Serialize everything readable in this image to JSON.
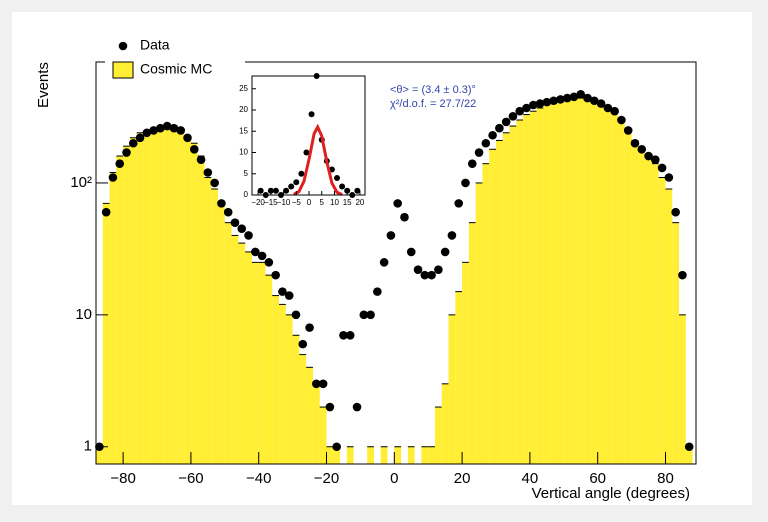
{
  "chart_data": [
    {
      "type": "histogram",
      "xlabel": "Vertical angle (degrees)",
      "ylabel": "Events",
      "yscale": "log",
      "xlim": [
        -88,
        89
      ],
      "ylim": [
        0.74,
        826
      ],
      "xticks": [
        {
          "value": -80,
          "label": "−80"
        },
        {
          "value": -60,
          "label": "−60"
        },
        {
          "value": -40,
          "label": "−40"
        },
        {
          "value": -20,
          "label": "−20"
        },
        0,
        20,
        40,
        60,
        80
      ],
      "yticks": [
        1,
        10,
        {
          "value": 100,
          "label": "10²"
        }
      ],
      "x": [
        -87,
        -85,
        -83,
        -81,
        -79,
        -77,
        -75,
        -73,
        -71,
        -69,
        -67,
        -65,
        -63,
        -61,
        -59,
        -57,
        -55,
        -53,
        -51,
        -49,
        -47,
        -45,
        -43,
        -41,
        -39,
        -37,
        -35,
        -33,
        -31,
        -29,
        -27,
        -25,
        -23,
        -21,
        -19,
        -17,
        -15,
        -13,
        -11,
        -9,
        -7,
        -5,
        -3,
        -1,
        1,
        3,
        5,
        7,
        9,
        11,
        13,
        15,
        17,
        19,
        21,
        23,
        25,
        27,
        29,
        31,
        33,
        35,
        37,
        39,
        41,
        43,
        45,
        47,
        49,
        51,
        53,
        55,
        57,
        59,
        61,
        63,
        65,
        67,
        69,
        71,
        73,
        75,
        77,
        79,
        81,
        83,
        85,
        87
      ],
      "series": [
        {
          "name": "Cosmic MC",
          "mark": "bars",
          "color": "#ffee33",
          "values": [
            1,
            70,
            120,
            160,
            190,
            220,
            240,
            250,
            260,
            270,
            260,
            250,
            240,
            220,
            200,
            160,
            110,
            90,
            70,
            50,
            40,
            35,
            30,
            25,
            25,
            20,
            14,
            12,
            10,
            7,
            5,
            4,
            3,
            2,
            1,
            1,
            0,
            1,
            0,
            0,
            1,
            0,
            1,
            0,
            1,
            0,
            1,
            0,
            1,
            1,
            2,
            3,
            10,
            15,
            25,
            50,
            100,
            140,
            180,
            210,
            240,
            270,
            300,
            330,
            350,
            370,
            390,
            400,
            410,
            420,
            430,
            440,
            430,
            420,
            400,
            380,
            350,
            300,
            260,
            210,
            180,
            160,
            140,
            110,
            90,
            50,
            10,
            1
          ]
        },
        {
          "name": "Data",
          "mark": "points",
          "color": "#000000",
          "values": [
            1,
            60,
            110,
            140,
            170,
            200,
            220,
            240,
            250,
            260,
            270,
            260,
            250,
            220,
            180,
            150,
            120,
            100,
            70,
            60,
            50,
            45,
            40,
            30,
            28,
            25,
            20,
            15,
            14,
            10,
            6,
            8,
            3,
            3,
            2,
            1,
            7,
            7,
            2,
            10,
            10,
            15,
            25,
            40,
            70,
            55,
            30,
            22,
            20,
            20,
            22,
            30,
            40,
            70,
            100,
            140,
            170,
            200,
            230,
            260,
            290,
            320,
            350,
            370,
            390,
            400,
            410,
            420,
            430,
            440,
            450,
            470,
            440,
            420,
            400,
            370,
            350,
            300,
            250,
            200,
            180,
            160,
            150,
            130,
            110,
            60,
            20,
            1
          ]
        }
      ],
      "annotations": [
        "<θ> = (3.4 ± 0.3)°",
        "χ²/d.o.f. = 27.7/22"
      ]
    },
    {
      "type": "scatter",
      "xlim": [
        -22.4,
        22
      ],
      "ylim": [
        0,
        28
      ],
      "xticks": [
        {
          "value": -20,
          "label": "−20"
        },
        {
          "value": -15,
          "label": "−15"
        },
        {
          "value": -10,
          "label": "−10"
        },
        {
          "value": -5,
          "label": "−5"
        },
        0,
        5,
        10,
        15,
        20
      ],
      "yticks": [
        0,
        5,
        10,
        15,
        20,
        25
      ],
      "series": [
        {
          "mark": "points",
          "color": "#000000",
          "x": [
            -19,
            -17,
            -15,
            -13,
            -11,
            -9,
            -7,
            -5,
            -3,
            -1,
            1,
            3,
            5,
            7,
            9,
            11,
            13,
            15,
            17,
            19
          ],
          "values": [
            1,
            0,
            1,
            1,
            0,
            1,
            2,
            3,
            5,
            10,
            19,
            28,
            13,
            8,
            6,
            4,
            2,
            1,
            0,
            1
          ]
        },
        {
          "mark": "line",
          "color": "#e02020",
          "x": [
            -6,
            -4,
            -2,
            0,
            2,
            3.4,
            5,
            7,
            9,
            11,
            13
          ],
          "values": [
            0.12,
            0.77,
            3.2,
            8.4,
            14.4,
            16,
            13.9,
            7.8,
            2.8,
            0.64,
            0.1
          ]
        }
      ]
    }
  ]
}
